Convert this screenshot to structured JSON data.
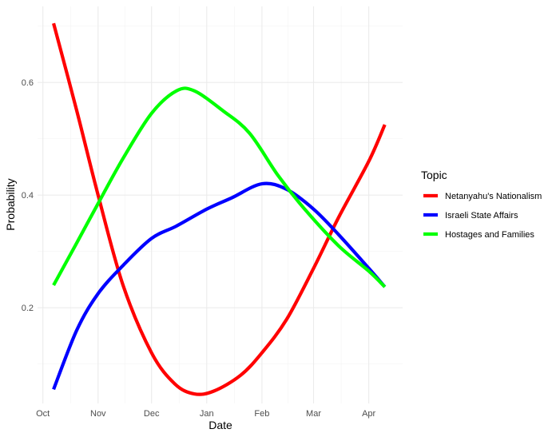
{
  "chart_data": {
    "type": "line",
    "title": "",
    "xlabel": "Date",
    "ylabel": "Probability",
    "x_ticks": [
      "Oct",
      "Nov",
      "Dec",
      "Jan",
      "Feb",
      "Mar",
      "Apr"
    ],
    "x_tick_dates": [
      "2023-10-01",
      "2023-11-01",
      "2023-12-01",
      "2024-01-01",
      "2024-02-01",
      "2024-03-01",
      "2024-04-01"
    ],
    "y_ticks": [
      0.2,
      0.4,
      0.6
    ],
    "xlim": [
      "2023-09-28",
      "2024-04-20"
    ],
    "ylim": [
      0.03,
      0.735
    ],
    "grid": true,
    "legend": {
      "title": "Topic",
      "position": "right"
    },
    "series": [
      {
        "name": "Netanyahu's Nationalism",
        "color": "#ff0000",
        "points": [
          [
            "2023-10-07",
            0.705
          ],
          [
            "2023-10-20",
            0.55
          ],
          [
            "2023-11-01",
            0.4
          ],
          [
            "2023-11-15",
            0.24
          ],
          [
            "2023-12-01",
            0.12
          ],
          [
            "2023-12-14",
            0.065
          ],
          [
            "2023-12-25",
            0.047
          ],
          [
            "2024-01-05",
            0.052
          ],
          [
            "2024-01-20",
            0.08
          ],
          [
            "2024-02-01",
            0.12
          ],
          [
            "2024-02-15",
            0.18
          ],
          [
            "2024-03-01",
            0.27
          ],
          [
            "2024-03-15",
            0.36
          ],
          [
            "2024-04-01",
            0.46
          ],
          [
            "2024-04-10",
            0.525
          ]
        ]
      },
      {
        "name": "Israeli State Affairs",
        "color": "#0000ff",
        "points": [
          [
            "2023-10-07",
            0.055
          ],
          [
            "2023-10-20",
            0.16
          ],
          [
            "2023-11-01",
            0.225
          ],
          [
            "2023-11-15",
            0.275
          ],
          [
            "2023-12-01",
            0.323
          ],
          [
            "2023-12-15",
            0.345
          ],
          [
            "2024-01-01",
            0.375
          ],
          [
            "2024-01-15",
            0.395
          ],
          [
            "2024-02-01",
            0.42
          ],
          [
            "2024-02-15",
            0.41
          ],
          [
            "2024-03-01",
            0.375
          ],
          [
            "2024-03-15",
            0.33
          ],
          [
            "2024-04-01",
            0.27
          ],
          [
            "2024-04-10",
            0.237
          ]
        ]
      },
      {
        "name": "Hostages and Families",
        "color": "#00ff00",
        "points": [
          [
            "2023-10-07",
            0.24
          ],
          [
            "2023-10-20",
            0.315
          ],
          [
            "2023-11-01",
            0.385
          ],
          [
            "2023-11-15",
            0.465
          ],
          [
            "2023-12-01",
            0.545
          ],
          [
            "2023-12-15",
            0.585
          ],
          [
            "2023-12-25",
            0.585
          ],
          [
            "2024-01-10",
            0.55
          ],
          [
            "2024-01-25",
            0.51
          ],
          [
            "2024-02-10",
            0.435
          ],
          [
            "2024-02-25",
            0.375
          ],
          [
            "2024-03-15",
            0.31
          ],
          [
            "2024-04-01",
            0.265
          ],
          [
            "2024-04-10",
            0.237
          ]
        ]
      }
    ]
  }
}
